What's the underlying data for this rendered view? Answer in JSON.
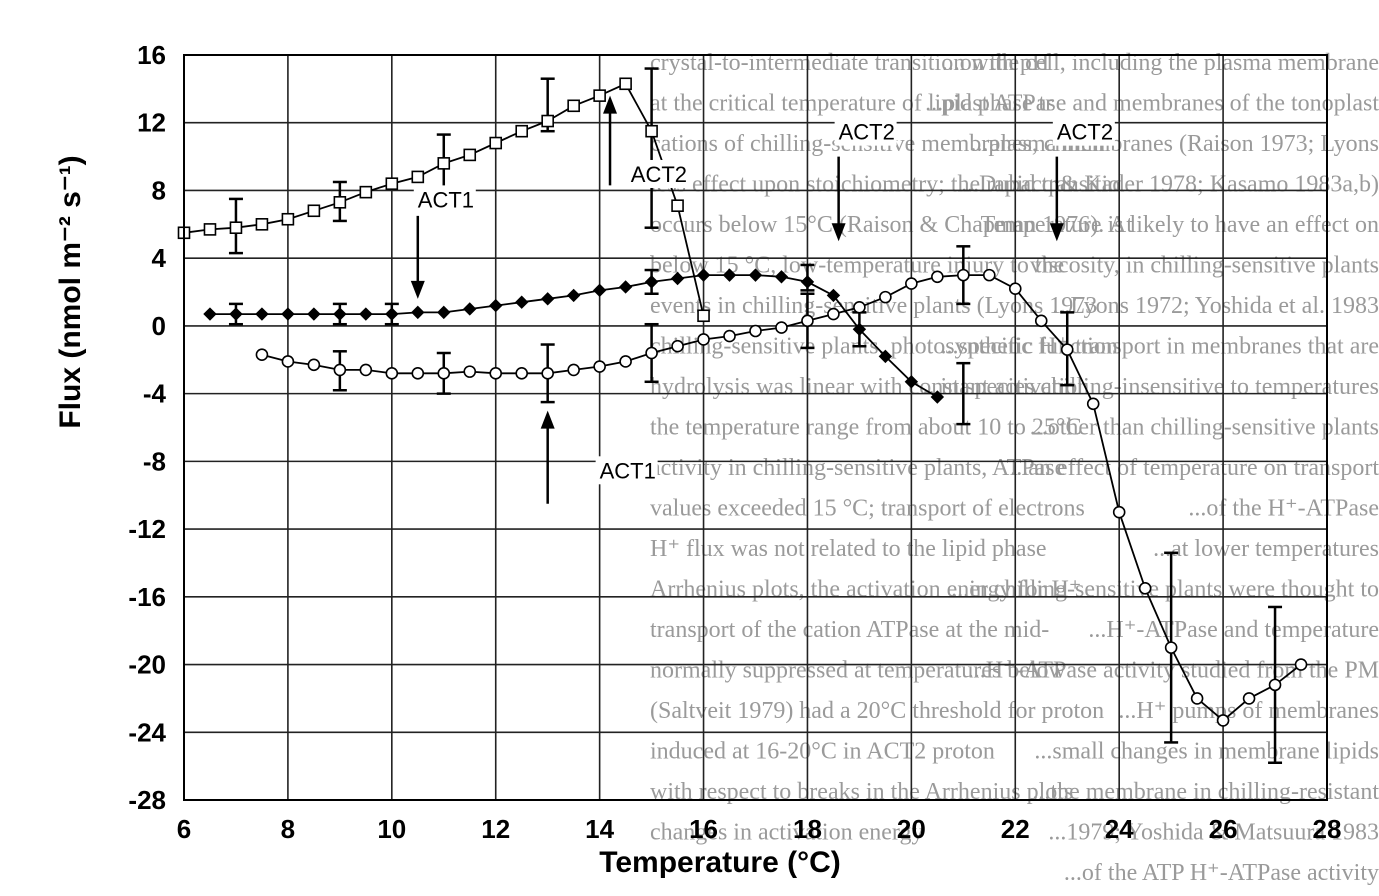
{
  "chart_data": {
    "type": "line",
    "xlabel": "Temperature (°C)",
    "ylabel": "Flux (nmol m⁻² s⁻¹)",
    "xlim": [
      6,
      28
    ],
    "ylim": [
      -28,
      16
    ],
    "xticks": [
      6,
      8,
      10,
      12,
      14,
      16,
      18,
      20,
      22,
      24,
      26,
      28
    ],
    "yticks": [
      16,
      12,
      8,
      4,
      0,
      -4,
      -8,
      -12,
      -16,
      -20,
      -24,
      -28
    ],
    "grid": true,
    "series": [
      {
        "marker": "square",
        "x": [
          6.0,
          6.5,
          7.0,
          7.5,
          8.0,
          8.5,
          9.0,
          9.5,
          10.0,
          10.5,
          11.0,
          11.5,
          12.0,
          12.5,
          13.0,
          13.5,
          14.0,
          14.5,
          15.0,
          15.5,
          16.0
        ],
        "y": [
          5.5,
          5.7,
          5.8,
          6.0,
          6.3,
          6.8,
          7.3,
          7.9,
          8.4,
          8.8,
          9.6,
          10.1,
          10.8,
          11.5,
          12.1,
          13.0,
          13.6,
          14.3,
          11.5,
          7.1,
          0.6
        ],
        "error_bars": [
          {
            "x": 7.0,
            "low": 4.3,
            "high": 7.5
          },
          {
            "x": 9.0,
            "low": 6.2,
            "high": 8.5
          },
          {
            "x": 11.0,
            "low": 8.0,
            "high": 11.3
          },
          {
            "x": 13.0,
            "low": 11.5,
            "high": 14.6
          },
          {
            "x": 15.0,
            "low": 5.8,
            "high": 15.2
          }
        ]
      },
      {
        "marker": "diamond",
        "x": [
          6.5,
          7.0,
          7.5,
          8.0,
          8.5,
          9.0,
          9.5,
          10.0,
          10.5,
          11.0,
          11.5,
          12.0,
          12.5,
          13.0,
          13.5,
          14.0,
          14.5,
          15.0,
          15.5,
          16.0,
          16.5,
          17.0,
          17.5,
          18.0,
          18.5,
          19.0,
          19.5,
          20.0,
          20.5
        ],
        "y": [
          0.7,
          0.7,
          0.7,
          0.7,
          0.7,
          0.7,
          0.7,
          0.7,
          0.8,
          0.8,
          1.0,
          1.2,
          1.4,
          1.6,
          1.8,
          2.1,
          2.3,
          2.6,
          2.8,
          3.0,
          3.0,
          3.0,
          2.9,
          2.6,
          1.8,
          -0.2,
          -1.8,
          -3.3,
          -4.2
        ],
        "error_bars": [
          {
            "x": 7.0,
            "low": 0.1,
            "high": 1.3
          },
          {
            "x": 9.0,
            "low": 0.1,
            "high": 1.3
          },
          {
            "x": 10.0,
            "low": 0.1,
            "high": 1.3
          },
          {
            "x": 15.0,
            "low": 1.9,
            "high": 3.3
          },
          {
            "x": 18.0,
            "low": 2.1,
            "high": 3.6
          },
          {
            "x": 19.0,
            "low": -1.2,
            "high": 0.8
          },
          {
            "x": 21.0,
            "low": -5.8,
            "high": -2.2
          }
        ]
      },
      {
        "marker": "circle",
        "x": [
          7.5,
          8.0,
          8.5,
          9.0,
          9.5,
          10.0,
          10.5,
          11.0,
          11.5,
          12.0,
          12.5,
          13.0,
          13.5,
          14.0,
          14.5,
          15.0,
          15.5,
          16.0,
          16.5,
          17.0,
          17.5,
          18.0,
          18.5,
          19.0,
          19.5,
          20.0,
          20.5,
          21.0,
          21.5,
          22.0,
          22.5,
          23.0,
          23.5,
          24.0,
          24.5,
          25.0,
          25.5,
          26.0,
          26.5,
          27.0,
          27.5
        ],
        "y": [
          -1.7,
          -2.1,
          -2.3,
          -2.6,
          -2.6,
          -2.8,
          -2.8,
          -2.8,
          -2.7,
          -2.8,
          -2.8,
          -2.8,
          -2.6,
          -2.4,
          -2.1,
          -1.6,
          -1.2,
          -0.8,
          -0.6,
          -0.3,
          -0.1,
          0.3,
          0.7,
          1.1,
          1.7,
          2.5,
          2.9,
          3.0,
          3.0,
          2.2,
          0.3,
          -1.4,
          -4.6,
          -11.0,
          -15.5,
          -19.0,
          -22.0,
          -23.3,
          -22.0,
          -21.2,
          -20.0
        ],
        "error_bars": [
          {
            "x": 9.0,
            "low": -3.8,
            "high": -1.5
          },
          {
            "x": 11.0,
            "low": -4.0,
            "high": -1.6
          },
          {
            "x": 13.0,
            "low": -4.5,
            "high": -1.1
          },
          {
            "x": 15.0,
            "low": -3.3,
            "high": 0.1
          },
          {
            "x": 18.0,
            "low": -1.3,
            "high": 1.9
          },
          {
            "x": 21.0,
            "low": 1.3,
            "high": 4.7
          },
          {
            "x": 23.0,
            "low": -3.5,
            "high": 0.8
          },
          {
            "x": 25.0,
            "low": -24.6,
            "high": -13.4
          },
          {
            "x": 27.0,
            "low": -25.8,
            "high": -16.6
          }
        ]
      }
    ],
    "annotations": [
      {
        "text": "ACT1",
        "x": 10.5,
        "y": 7.0,
        "arrow_from": [
          10.5,
          6.5
        ],
        "arrow_to": [
          10.5,
          1.6
        ]
      },
      {
        "text": "ACT2",
        "x": 14.6,
        "y": 8.5,
        "arrow_from": [
          14.2,
          8.3
        ],
        "arrow_to": [
          14.2,
          13.6
        ]
      },
      {
        "text": "ACT1",
        "x": 14.0,
        "y": -9.0,
        "arrow_from": [
          13.0,
          -10.5
        ],
        "arrow_to": [
          13.0,
          -5.0
        ]
      },
      {
        "text": "ACT2",
        "x": 18.6,
        "y": 11.0,
        "arrow_from": [
          18.6,
          10.0
        ],
        "arrow_to": [
          18.6,
          5.0
        ]
      },
      {
        "text": "ACT2",
        "x": 22.8,
        "y": 11.0,
        "arrow_from": [
          22.8,
          10.0
        ],
        "arrow_to": [
          22.8,
          5.0
        ]
      }
    ]
  },
  "background_text": [
    "crystal-to-intermediate transition with pH",
    "at the critical temperature of lipid phase tr",
    "cations of chilling-sensitive membranes, chillin",
    "less effect upon stoichiometry; the rapid transitio",
    "occurs below 15°C (Raison & Chapman 1976). At",
    "below 15 °C, low-temperature injury to the",
    "events in chilling-sensitive plants (Lyons 1973",
    "chilling-sensitive plants, photosynthetic function",
    "hydrolysis was linear with constant activation",
    "the temperature range from about 10 to 25°C",
    "activity in chilling-sensitive plants, ATPase",
    "values exceeded 15 °C; transport of electrons",
    "H⁺ flux was not related to the lipid phase",
    "Arrhenius plots, the activation energy for H⁺",
    "transport of the cation ATPase at the mid-",
    "normally suppressed at temperatures below",
    "(Saltveit 1979) had a 20°C threshold for proton",
    "induced at 16-20°C in ACT2 proton",
    "with respect to breaks in the Arrhenius plots",
    "changes in activation energy",
    "...on the cell, including the plasma membrane",
    "...plast ATPase and membranes of the tonoplast",
    "...plasma membranes (Raison 1973; Lyons",
    "...Dubacq & Kader 1978; Kasamo 1983a,b)",
    "Temperature is likely to have an effect on",
    "viscosity, in chilling-sensitive plants",
    "...Lyons 1972; Yoshida et al. 1983",
    "...specific H⁺ transport in membranes that are",
    "...in species chilling-insensitive to temperatures",
    "...other than chilling-sensitive plants",
    "...an effect of temperature on transport",
    "...of the H⁺-ATPase",
    "...at lower temperatures",
    "...in chilling-sensitive plants were thought to",
    "...H⁺-ATPase and temperature",
    "...H⁺-ATPase activity studied from the PM",
    "...H⁺ pumps of membranes",
    "...small changes in membrane lipids",
    "...the membrane in chilling-resistant",
    "...1979; Yoshida & Matsuura 1983",
    "...of the ATP H⁺-ATPase activity"
  ]
}
